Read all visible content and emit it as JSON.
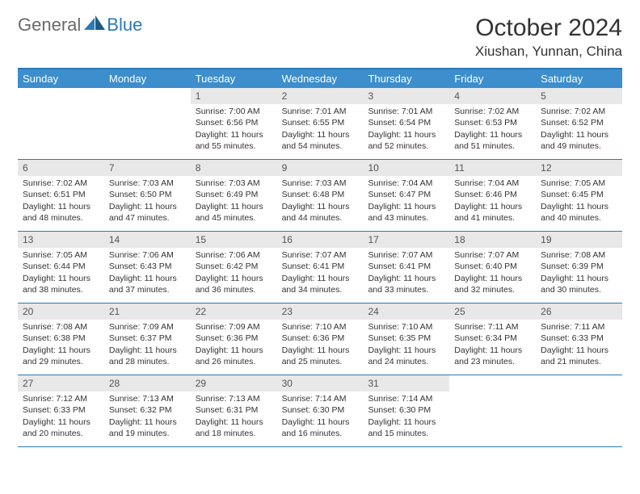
{
  "logo": {
    "part1": "General",
    "part2": "Blue"
  },
  "title": "October 2024",
  "location": "Xiushan, Yunnan, China",
  "colors": {
    "header_bg": "#3c8ecc",
    "header_text": "#ffffff",
    "border": "#2a7ab8",
    "daynum_bg": "#e8e8e8",
    "text": "#333333",
    "logo_gray": "#6a6a6a",
    "logo_blue": "#2a7ab8"
  },
  "dayNames": [
    "Sunday",
    "Monday",
    "Tuesday",
    "Wednesday",
    "Thursday",
    "Friday",
    "Saturday"
  ],
  "weeks": [
    [
      {
        "empty": true
      },
      {
        "empty": true
      },
      {
        "day": "1",
        "sunrise": "Sunrise: 7:00 AM",
        "sunset": "Sunset: 6:56 PM",
        "daylight": "Daylight: 11 hours and 55 minutes."
      },
      {
        "day": "2",
        "sunrise": "Sunrise: 7:01 AM",
        "sunset": "Sunset: 6:55 PM",
        "daylight": "Daylight: 11 hours and 54 minutes."
      },
      {
        "day": "3",
        "sunrise": "Sunrise: 7:01 AM",
        "sunset": "Sunset: 6:54 PM",
        "daylight": "Daylight: 11 hours and 52 minutes."
      },
      {
        "day": "4",
        "sunrise": "Sunrise: 7:02 AM",
        "sunset": "Sunset: 6:53 PM",
        "daylight": "Daylight: 11 hours and 51 minutes."
      },
      {
        "day": "5",
        "sunrise": "Sunrise: 7:02 AM",
        "sunset": "Sunset: 6:52 PM",
        "daylight": "Daylight: 11 hours and 49 minutes."
      }
    ],
    [
      {
        "day": "6",
        "sunrise": "Sunrise: 7:02 AM",
        "sunset": "Sunset: 6:51 PM",
        "daylight": "Daylight: 11 hours and 48 minutes."
      },
      {
        "day": "7",
        "sunrise": "Sunrise: 7:03 AM",
        "sunset": "Sunset: 6:50 PM",
        "daylight": "Daylight: 11 hours and 47 minutes."
      },
      {
        "day": "8",
        "sunrise": "Sunrise: 7:03 AM",
        "sunset": "Sunset: 6:49 PM",
        "daylight": "Daylight: 11 hours and 45 minutes."
      },
      {
        "day": "9",
        "sunrise": "Sunrise: 7:03 AM",
        "sunset": "Sunset: 6:48 PM",
        "daylight": "Daylight: 11 hours and 44 minutes."
      },
      {
        "day": "10",
        "sunrise": "Sunrise: 7:04 AM",
        "sunset": "Sunset: 6:47 PM",
        "daylight": "Daylight: 11 hours and 43 minutes."
      },
      {
        "day": "11",
        "sunrise": "Sunrise: 7:04 AM",
        "sunset": "Sunset: 6:46 PM",
        "daylight": "Daylight: 11 hours and 41 minutes."
      },
      {
        "day": "12",
        "sunrise": "Sunrise: 7:05 AM",
        "sunset": "Sunset: 6:45 PM",
        "daylight": "Daylight: 11 hours and 40 minutes."
      }
    ],
    [
      {
        "day": "13",
        "sunrise": "Sunrise: 7:05 AM",
        "sunset": "Sunset: 6:44 PM",
        "daylight": "Daylight: 11 hours and 38 minutes."
      },
      {
        "day": "14",
        "sunrise": "Sunrise: 7:06 AM",
        "sunset": "Sunset: 6:43 PM",
        "daylight": "Daylight: 11 hours and 37 minutes."
      },
      {
        "day": "15",
        "sunrise": "Sunrise: 7:06 AM",
        "sunset": "Sunset: 6:42 PM",
        "daylight": "Daylight: 11 hours and 36 minutes."
      },
      {
        "day": "16",
        "sunrise": "Sunrise: 7:07 AM",
        "sunset": "Sunset: 6:41 PM",
        "daylight": "Daylight: 11 hours and 34 minutes."
      },
      {
        "day": "17",
        "sunrise": "Sunrise: 7:07 AM",
        "sunset": "Sunset: 6:41 PM",
        "daylight": "Daylight: 11 hours and 33 minutes."
      },
      {
        "day": "18",
        "sunrise": "Sunrise: 7:07 AM",
        "sunset": "Sunset: 6:40 PM",
        "daylight": "Daylight: 11 hours and 32 minutes."
      },
      {
        "day": "19",
        "sunrise": "Sunrise: 7:08 AM",
        "sunset": "Sunset: 6:39 PM",
        "daylight": "Daylight: 11 hours and 30 minutes."
      }
    ],
    [
      {
        "day": "20",
        "sunrise": "Sunrise: 7:08 AM",
        "sunset": "Sunset: 6:38 PM",
        "daylight": "Daylight: 11 hours and 29 minutes."
      },
      {
        "day": "21",
        "sunrise": "Sunrise: 7:09 AM",
        "sunset": "Sunset: 6:37 PM",
        "daylight": "Daylight: 11 hours and 28 minutes."
      },
      {
        "day": "22",
        "sunrise": "Sunrise: 7:09 AM",
        "sunset": "Sunset: 6:36 PM",
        "daylight": "Daylight: 11 hours and 26 minutes."
      },
      {
        "day": "23",
        "sunrise": "Sunrise: 7:10 AM",
        "sunset": "Sunset: 6:36 PM",
        "daylight": "Daylight: 11 hours and 25 minutes."
      },
      {
        "day": "24",
        "sunrise": "Sunrise: 7:10 AM",
        "sunset": "Sunset: 6:35 PM",
        "daylight": "Daylight: 11 hours and 24 minutes."
      },
      {
        "day": "25",
        "sunrise": "Sunrise: 7:11 AM",
        "sunset": "Sunset: 6:34 PM",
        "daylight": "Daylight: 11 hours and 23 minutes."
      },
      {
        "day": "26",
        "sunrise": "Sunrise: 7:11 AM",
        "sunset": "Sunset: 6:33 PM",
        "daylight": "Daylight: 11 hours and 21 minutes."
      }
    ],
    [
      {
        "day": "27",
        "sunrise": "Sunrise: 7:12 AM",
        "sunset": "Sunset: 6:33 PM",
        "daylight": "Daylight: 11 hours and 20 minutes."
      },
      {
        "day": "28",
        "sunrise": "Sunrise: 7:13 AM",
        "sunset": "Sunset: 6:32 PM",
        "daylight": "Daylight: 11 hours and 19 minutes."
      },
      {
        "day": "29",
        "sunrise": "Sunrise: 7:13 AM",
        "sunset": "Sunset: 6:31 PM",
        "daylight": "Daylight: 11 hours and 18 minutes."
      },
      {
        "day": "30",
        "sunrise": "Sunrise: 7:14 AM",
        "sunset": "Sunset: 6:30 PM",
        "daylight": "Daylight: 11 hours and 16 minutes."
      },
      {
        "day": "31",
        "sunrise": "Sunrise: 7:14 AM",
        "sunset": "Sunset: 6:30 PM",
        "daylight": "Daylight: 11 hours and 15 minutes."
      },
      {
        "empty": true
      },
      {
        "empty": true
      }
    ]
  ]
}
